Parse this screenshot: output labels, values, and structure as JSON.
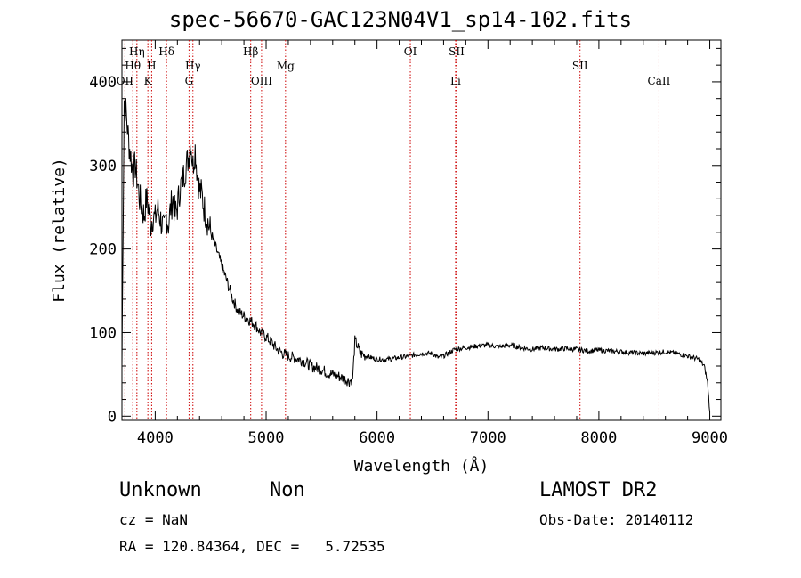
{
  "chart_data": {
    "type": "line",
    "title": "spec-56670-GAC123N04V1_sp14-102.fits",
    "xlabel": "Wavelength (Å)",
    "ylabel": "Flux (relative)",
    "xlim": [
      3700,
      9100
    ],
    "ylim": [
      -5,
      450
    ],
    "xticks": [
      4000,
      5000,
      6000,
      7000,
      8000,
      9000
    ],
    "yticks": [
      0,
      100,
      200,
      300,
      400
    ],
    "grid": false,
    "series": [
      {
        "x": [
          3700,
          3720,
          3740,
          3760,
          3780,
          3800,
          3820,
          3840,
          3860,
          3880,
          3900,
          3920,
          3940,
          3960,
          3980,
          4000,
          4020,
          4040,
          4060,
          4080,
          4100,
          4120,
          4140,
          4160,
          4180,
          4200,
          4220,
          4240,
          4260,
          4280,
          4300,
          4320,
          4340,
          4360,
          4380,
          4400,
          4420,
          4440,
          4460,
          4480,
          4500,
          4550,
          4600,
          4650,
          4700,
          4750,
          4800,
          4850,
          4900,
          4950,
          5000,
          5050,
          5100,
          5150,
          5200,
          5250,
          5300,
          5350,
          5400,
          5450,
          5500,
          5550,
          5600,
          5650,
          5700,
          5750,
          5780,
          5800,
          5820,
          5850,
          5900,
          5950,
          6000,
          6100,
          6200,
          6300,
          6400,
          6500,
          6550,
          6600,
          6700,
          6800,
          6900,
          7000,
          7100,
          7200,
          7300,
          7400,
          7500,
          7600,
          7700,
          7800,
          7900,
          8000,
          8100,
          8200,
          8300,
          8400,
          8500,
          8600,
          8700,
          8800,
          8850,
          8900,
          8950,
          8980,
          9000
        ],
        "values": [
          60,
          380,
          360,
          330,
          310,
          290,
          300,
          280,
          260,
          250,
          240,
          260,
          250,
          230,
          240,
          235,
          250,
          240,
          230,
          220,
          240,
          230,
          250,
          260,
          240,
          250,
          270,
          280,
          290,
          300,
          310,
          330,
          300,
          320,
          290,
          270,
          265,
          250,
          240,
          230,
          220,
          200,
          180,
          160,
          140,
          125,
          120,
          115,
          110,
          100,
          95,
          88,
          80,
          75,
          72,
          70,
          68,
          65,
          60,
          58,
          56,
          52,
          50,
          48,
          45,
          42,
          45,
          90,
          85,
          75,
          72,
          70,
          68,
          68,
          70,
          72,
          75,
          75,
          70,
          72,
          80,
          82,
          84,
          85,
          83,
          85,
          82,
          80,
          82,
          80,
          81,
          80,
          78,
          79,
          78,
          77,
          76,
          75,
          76,
          77,
          75,
          72,
          70,
          68,
          60,
          40,
          5
        ]
      }
    ],
    "lines": [
      {
        "label": "Hη",
        "x": 3835
      },
      {
        "label": "Hθ",
        "x": 3798
      },
      {
        "label": "OII",
        "x": 3727
      },
      {
        "label": "H",
        "x": 3968
      },
      {
        "label": "K",
        "x": 3934
      },
      {
        "label": "Hδ",
        "x": 4102
      },
      {
        "label": "Hγ",
        "x": 4340
      },
      {
        "label": "G",
        "x": 4305
      },
      {
        "label": "Hβ",
        "x": 4861
      },
      {
        "label": "OIII",
        "x": 4959
      },
      {
        "label": "Mg",
        "x": 5175
      },
      {
        "label": "OI",
        "x": 6300
      },
      {
        "label": "SII",
        "x": 6717
      },
      {
        "label": "Li",
        "x": 6708
      },
      {
        "label": "SII",
        "x": 7830
      },
      {
        "label": "CaII",
        "x": 8542
      }
    ]
  },
  "footer": {
    "class_text": "Unknown",
    "subclass_text": "Non",
    "survey": "LAMOST DR2",
    "cz": "cz = NaN",
    "obs_date": "Obs-Date: 20140112",
    "radec": "RA = 120.84364, DEC =   5.72535"
  },
  "colors": {
    "line": "#000000",
    "marker": "#cc0000"
  }
}
